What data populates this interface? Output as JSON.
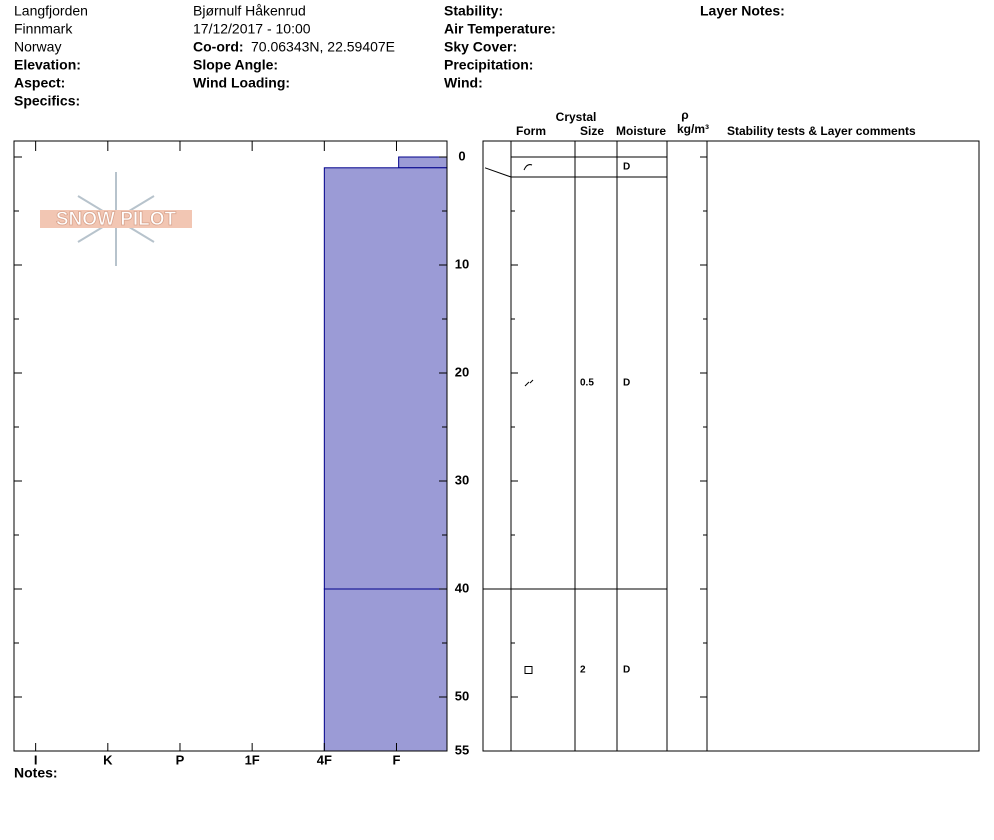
{
  "header": {
    "location": [
      "Langfjorden",
      "Finnmark",
      "Norway"
    ],
    "elevation": "Elevation:",
    "aspect": "Aspect:",
    "specifics": "Specifics:",
    "observer": "Bjørnulf Håkenrud",
    "datetime": "17/12/2017 - 10:00",
    "coord_label": "Co-ord:",
    "coord": "70.06343N, 22.59407E",
    "slope_angle": "Slope Angle:",
    "wind_loading": "Wind Loading:",
    "stability": "Stability:",
    "air_temperature": "Air Temperature:",
    "sky_cover": "Sky Cover:",
    "precipitation": "Precipitation:",
    "wind": "Wind:",
    "layer_notes": "Layer Notes:"
  },
  "logo": "SNOW PILOT",
  "notes": "Notes:",
  "columns": {
    "crystal": "Crystal",
    "form": "Form",
    "size": "Size",
    "moisture": "Moisture",
    "rho": "ρ",
    "density_unit": "kg/m³",
    "comments": "Stability tests & Layer comments"
  },
  "chart_data": {
    "type": "hardness-profile",
    "color": "#9b9bd6",
    "edge_color": "#00008b",
    "xlim": [
      6.3,
      0.3
    ],
    "xticks": [
      {
        "value": 6,
        "label": "I"
      },
      {
        "value": 5,
        "label": "K"
      },
      {
        "value": 4,
        "label": "P"
      },
      {
        "value": 3,
        "label": "1F"
      },
      {
        "value": 2,
        "label": "4F"
      },
      {
        "value": 1,
        "label": "F"
      }
    ],
    "ylim": [
      0,
      55
    ],
    "yticks": [
      0,
      10,
      20,
      30,
      40,
      50,
      55
    ],
    "minor_yticks": [
      5,
      15,
      25,
      35,
      45
    ],
    "layers": [
      {
        "top": 0,
        "bottom": 1,
        "hardness": 0.97,
        "moisture": "D"
      },
      {
        "top": 1,
        "bottom": 40,
        "hardness": 2,
        "size": 0.5,
        "moisture": "D"
      },
      {
        "top": 40,
        "bottom": 55,
        "hardness": 2,
        "size": 2,
        "moisture": "D"
      }
    ]
  }
}
